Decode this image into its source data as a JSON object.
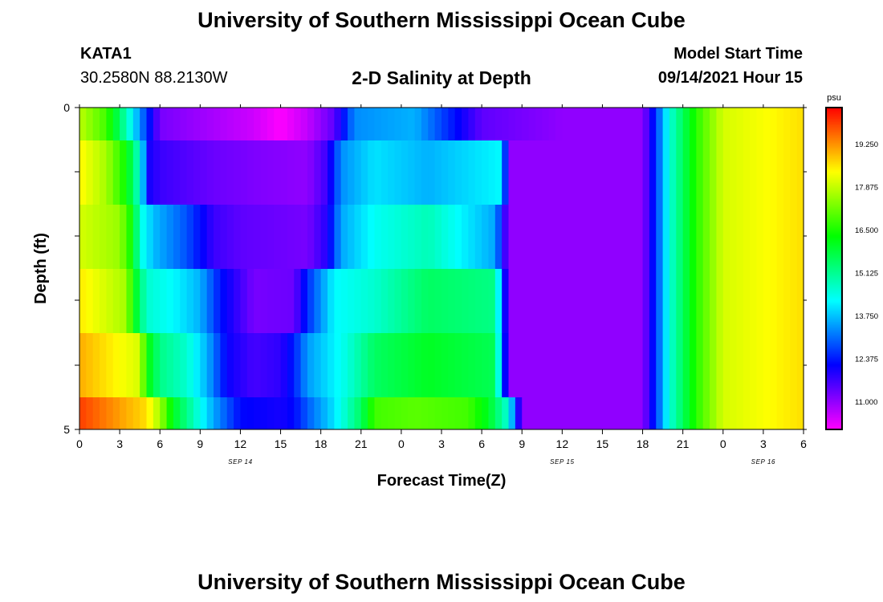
{
  "header": {
    "title": "University of Southern Mississippi Ocean Cube",
    "station": "KATA1",
    "coords": "30.2580N  88.2130W",
    "subtitle": "2-D Salinity at Depth",
    "start_label": "Model Start Time",
    "start_value": "09/14/2021 Hour 15"
  },
  "footer": {
    "title": "University of Southern Mississippi Ocean Cube"
  },
  "chart_data": {
    "type": "heatmap",
    "title": "2-D Salinity at Depth",
    "xlabel": "Forecast Time(Z)",
    "ylabel": "Depth (ft)",
    "x_tick_labels": [
      "0",
      "3",
      "6",
      "9",
      "12",
      "15",
      "18",
      "21",
      "0",
      "3",
      "6",
      "9",
      "12",
      "15",
      "18",
      "21",
      "0",
      "3",
      "6"
    ],
    "x_date_labels": [
      {
        "label": "SEP 14",
        "hour": 12
      },
      {
        "label": "SEP 15",
        "hour": 36
      },
      {
        "label": "SEP 16",
        "hour": 51
      }
    ],
    "x_range_hours": [
      0,
      54
    ],
    "y_tick_labels": [
      "0",
      "5"
    ],
    "ylim": [
      0,
      5
    ],
    "colorbar": {
      "unit": "psu",
      "ticks": [
        "19.250",
        "17.875",
        "16.500",
        "15.125",
        "13.750",
        "12.375",
        "11.000"
      ],
      "range": [
        10.1,
        20.4
      ]
    },
    "depth_layers": [
      {
        "depth": "0-0.5",
        "anchors": [
          [
            0,
            17.8
          ],
          [
            2,
            16.8
          ],
          [
            3.5,
            14.8
          ],
          [
            5,
            12.6
          ],
          [
            6,
            11.2
          ],
          [
            9,
            10.9
          ],
          [
            13,
            10.5
          ],
          [
            15,
            10.1
          ],
          [
            17,
            10.6
          ],
          [
            19,
            11.4
          ],
          [
            20.5,
            13.3
          ],
          [
            25,
            13.6
          ],
          [
            27,
            12.7
          ],
          [
            30,
            11.4
          ],
          [
            36,
            11.0
          ],
          [
            42,
            11.0
          ],
          [
            43,
            12.6
          ],
          [
            44,
            14.5
          ],
          [
            46,
            16.6
          ],
          [
            48,
            18.0
          ],
          [
            54,
            18.6
          ]
        ]
      },
      {
        "depth": "0.5-1.5",
        "anchors": [
          [
            0,
            18.4
          ],
          [
            2,
            17.6
          ],
          [
            3.5,
            16.3
          ],
          [
            4.5,
            14.5
          ],
          [
            5.2,
            12.0
          ],
          [
            6,
            11.7
          ],
          [
            10,
            11.3
          ],
          [
            14,
            11.1
          ],
          [
            17,
            11.0
          ],
          [
            18.5,
            11.7
          ],
          [
            19.5,
            13.3
          ],
          [
            22,
            14.0
          ],
          [
            26,
            13.6
          ],
          [
            31.5,
            14.2
          ],
          [
            32,
            11.0
          ],
          [
            42,
            11.0
          ],
          [
            43,
            12.6
          ],
          [
            44,
            14.5
          ],
          [
            46,
            16.6
          ],
          [
            48,
            18.0
          ],
          [
            54,
            18.6
          ]
        ]
      },
      {
        "depth": "1.5-2.5",
        "anchors": [
          [
            0,
            18.0
          ],
          [
            3,
            17.5
          ],
          [
            4,
            16.2
          ],
          [
            4.5,
            14.5
          ],
          [
            5.5,
            13.7
          ],
          [
            8,
            12.8
          ],
          [
            10,
            11.7
          ],
          [
            12,
            11.4
          ],
          [
            17,
            11.2
          ],
          [
            18.5,
            11.9
          ],
          [
            19.5,
            13.5
          ],
          [
            22,
            14.3
          ],
          [
            26,
            14.8
          ],
          [
            31,
            13.5
          ],
          [
            32,
            11.0
          ],
          [
            42,
            11.0
          ],
          [
            43,
            12.6
          ],
          [
            44,
            14.5
          ],
          [
            46,
            16.6
          ],
          [
            48,
            18.0
          ],
          [
            54,
            18.6
          ]
        ]
      },
      {
        "depth": "2.5-3.5",
        "anchors": [
          [
            0,
            18.5
          ],
          [
            3.5,
            17.6
          ],
          [
            4,
            16.3
          ],
          [
            5,
            14.6
          ],
          [
            7,
            14.2
          ],
          [
            9,
            13.6
          ],
          [
            10.5,
            12.3
          ],
          [
            13,
            11.2
          ],
          [
            16,
            11.3
          ],
          [
            17,
            12.5
          ],
          [
            19,
            14.2
          ],
          [
            22,
            14.6
          ],
          [
            26,
            15.5
          ],
          [
            31,
            15.2
          ],
          [
            32,
            11.0
          ],
          [
            42,
            11.0
          ],
          [
            43,
            12.6
          ],
          [
            44,
            14.5
          ],
          [
            46,
            16.6
          ],
          [
            48,
            18.0
          ],
          [
            54,
            18.6
          ]
        ]
      },
      {
        "depth": "3.5-4.5",
        "anchors": [
          [
            0,
            19.0
          ],
          [
            4.5,
            18.0
          ],
          [
            5,
            16.3
          ],
          [
            6,
            15.2
          ],
          [
            8,
            14.6
          ],
          [
            9.5,
            13.6
          ],
          [
            11,
            12.1
          ],
          [
            13,
            11.6
          ],
          [
            15,
            11.8
          ],
          [
            16,
            12.4
          ],
          [
            17,
            13.4
          ],
          [
            20,
            14.5
          ],
          [
            22,
            15.5
          ],
          [
            26,
            16.0
          ],
          [
            31,
            15.6
          ],
          [
            32,
            11.0
          ],
          [
            42,
            11.0
          ],
          [
            43,
            12.6
          ],
          [
            44,
            14.5
          ],
          [
            46,
            16.6
          ],
          [
            48,
            18.0
          ],
          [
            54,
            18.6
          ]
        ]
      },
      {
        "depth": "4.5-5",
        "anchors": [
          [
            0,
            19.9
          ],
          [
            5,
            18.6
          ],
          [
            6,
            17.6
          ],
          [
            7,
            16.0
          ],
          [
            8,
            15.2
          ],
          [
            10,
            13.5
          ],
          [
            12,
            12.2
          ],
          [
            15,
            12.0
          ],
          [
            16,
            12.2
          ],
          [
            17,
            12.9
          ],
          [
            19,
            14.0
          ],
          [
            21,
            15.5
          ],
          [
            22,
            16.8
          ],
          [
            25,
            17.0
          ],
          [
            29,
            16.8
          ],
          [
            30.5,
            16.0
          ],
          [
            32,
            14.5
          ],
          [
            33,
            11.0
          ],
          [
            42,
            11.0
          ],
          [
            43,
            12.6
          ],
          [
            44,
            14.5
          ],
          [
            46,
            16.6
          ],
          [
            48,
            18.0
          ],
          [
            54,
            18.6
          ]
        ]
      }
    ]
  }
}
